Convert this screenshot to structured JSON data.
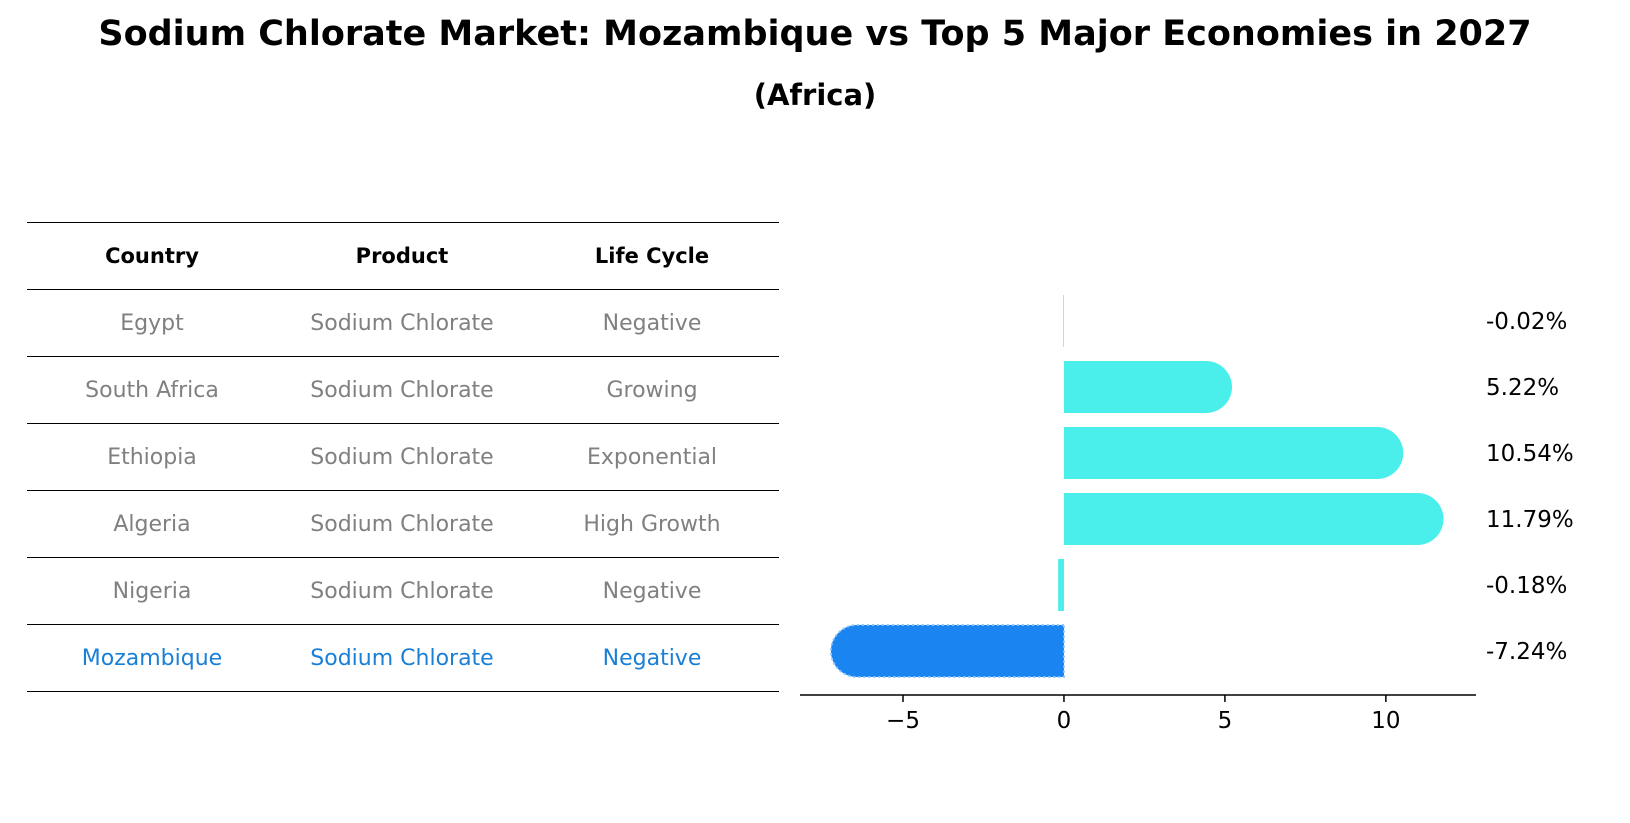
{
  "title": "Sodium Chlorate Market: Mozambique vs Top 5 Major Economies in 2027",
  "subtitle": "(Africa)",
  "table": {
    "headers": [
      "Country",
      "Product",
      "Life Cycle"
    ],
    "rows": [
      [
        "Egypt",
        "Sodium Chlorate",
        "Negative"
      ],
      [
        "South Africa",
        "Sodium Chlorate",
        "Growing"
      ],
      [
        "Ethiopia",
        "Sodium Chlorate",
        "Exponential"
      ],
      [
        "Algeria",
        "Sodium Chlorate",
        "High Growth"
      ],
      [
        "Nigeria",
        "Sodium Chlorate",
        "Negative"
      ],
      [
        "Mozambique",
        "Sodium Chlorate",
        "Negative"
      ]
    ]
  },
  "chart_data": {
    "type": "bar",
    "orientation": "horizontal",
    "categories": [
      "Egypt",
      "South Africa",
      "Ethiopia",
      "Algeria",
      "Nigeria",
      "Mozambique"
    ],
    "values": [
      -0.02,
      5.22,
      10.54,
      11.79,
      -0.18,
      -7.24
    ],
    "value_labels": [
      "-0.02%",
      "5.22%",
      "10.54%",
      "11.79%",
      "-0.18%",
      "-7.24%"
    ],
    "highlight": "Mozambique",
    "xlim": [
      -8.2,
      12.8
    ],
    "xticks": [
      -5,
      0,
      5,
      10
    ],
    "xtick_labels": [
      "−5",
      "0",
      "5",
      "10"
    ],
    "colors": {
      "default": "#4aeeea",
      "highlight": "#1a85f0"
    }
  }
}
